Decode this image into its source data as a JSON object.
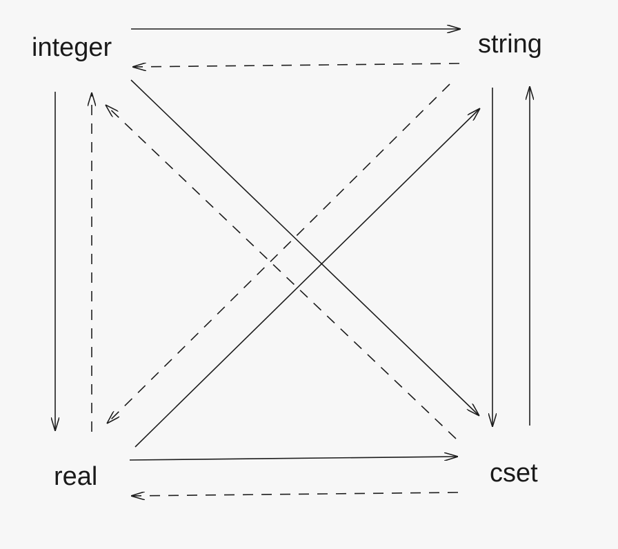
{
  "diagram": {
    "nodes": [
      {
        "id": "integer",
        "label": "integer"
      },
      {
        "id": "string",
        "label": "string"
      },
      {
        "id": "real",
        "label": "real"
      },
      {
        "id": "cset",
        "label": "cset"
      }
    ],
    "edges": [
      {
        "from": "integer",
        "to": "string",
        "style": "solid"
      },
      {
        "from": "string",
        "to": "integer",
        "style": "dashed"
      },
      {
        "from": "integer",
        "to": "real",
        "style": "solid"
      },
      {
        "from": "real",
        "to": "integer",
        "style": "dashed"
      },
      {
        "from": "string",
        "to": "cset",
        "style": "solid"
      },
      {
        "from": "cset",
        "to": "string",
        "style": "solid"
      },
      {
        "from": "real",
        "to": "cset",
        "style": "solid"
      },
      {
        "from": "cset",
        "to": "real",
        "style": "dashed"
      },
      {
        "from": "integer",
        "to": "cset",
        "style": "solid"
      },
      {
        "from": "cset",
        "to": "integer",
        "style": "dashed"
      },
      {
        "from": "real",
        "to": "string",
        "style": "solid"
      },
      {
        "from": "string",
        "to": "real",
        "style": "dashed"
      }
    ]
  }
}
